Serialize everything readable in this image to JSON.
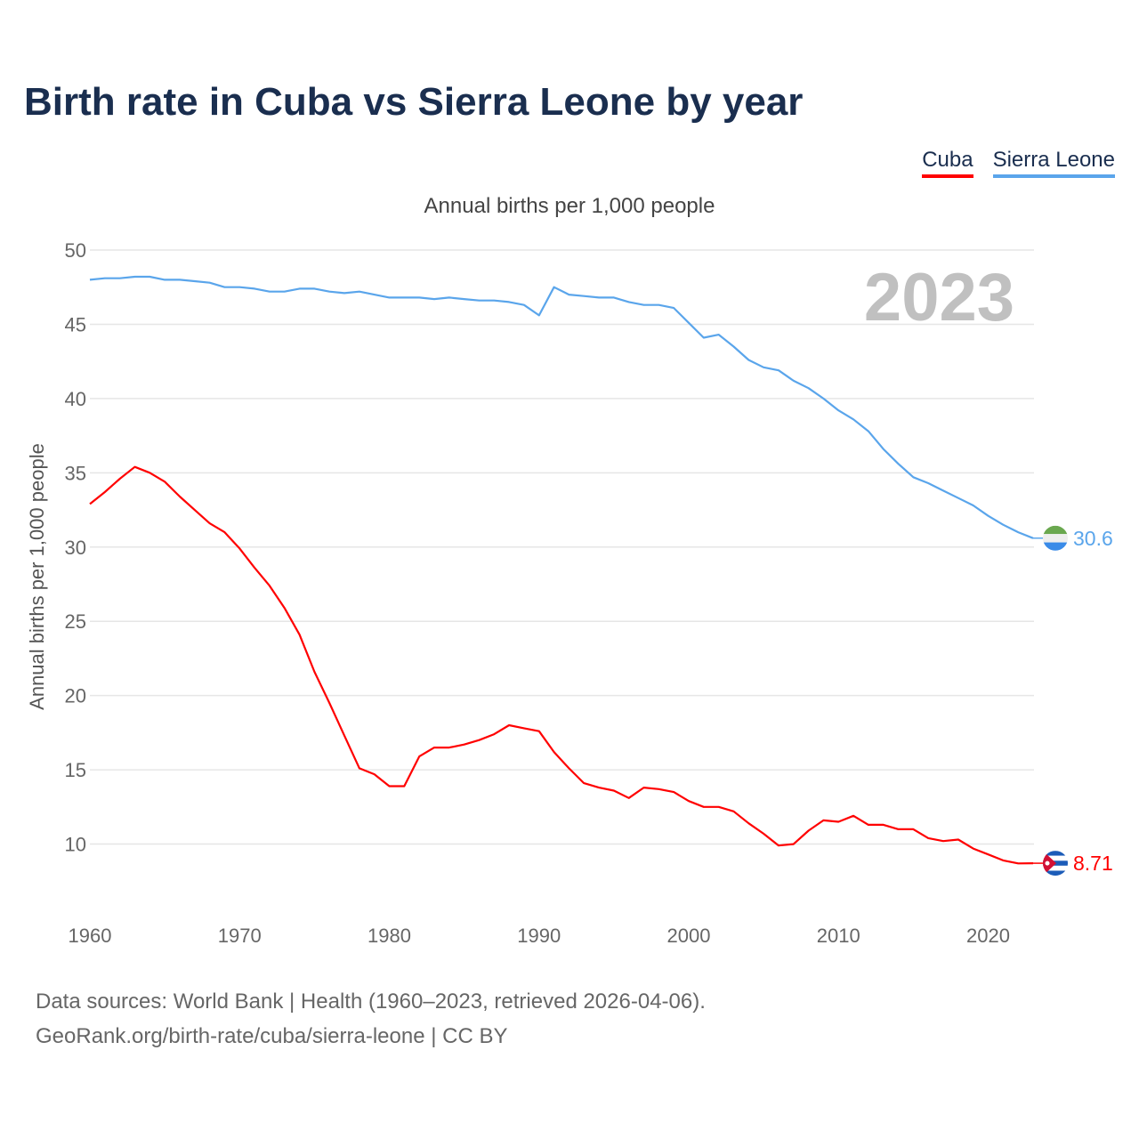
{
  "title": "Birth rate in Cuba vs Sierra Leone by year",
  "legend": [
    {
      "label": "Cuba",
      "color": "#ff0000"
    },
    {
      "label": "Sierra Leone",
      "color": "#5aa5eb"
    }
  ],
  "footer": {
    "line1": "Data sources: World Bank | Health (1960–2023, retrieved 2026-04-06).",
    "line2": "GeoRank.org/birth-rate/cuba/sierra-leone | CC BY"
  },
  "chart_data": {
    "type": "line",
    "title": "Birth rate in Cuba vs Sierra Leone by year",
    "subtitle": "Annual births per 1,000 people",
    "ylabel": "Annual births per 1,000 people",
    "xlabel": "",
    "year_label": "2023",
    "xlim": [
      1960,
      2023
    ],
    "ylim": [
      5,
      50
    ],
    "xticks": [
      "1960",
      "1970",
      "1980",
      "1990",
      "2000",
      "2010",
      "2020"
    ],
    "yticks": [
      "10",
      "15",
      "20",
      "25",
      "30",
      "35",
      "40",
      "45",
      "50"
    ],
    "grid": true,
    "legend_position": "top-right",
    "x_start": 1960,
    "series": [
      {
        "name": "Cuba",
        "color": "#ff0000",
        "end_label": "8.71",
        "flag": "cuba-flag",
        "values": [
          32.9,
          33.7,
          34.6,
          35.4,
          35.0,
          34.4,
          33.4,
          32.5,
          31.6,
          31.0,
          29.9,
          28.6,
          27.4,
          25.9,
          24.1,
          21.6,
          19.5,
          17.3,
          15.1,
          14.7,
          13.9,
          13.9,
          15.9,
          16.5,
          16.5,
          16.7,
          17.0,
          17.4,
          18.0,
          17.8,
          17.6,
          16.2,
          15.1,
          14.1,
          13.8,
          13.6,
          13.1,
          13.8,
          13.7,
          13.5,
          12.9,
          12.5,
          12.5,
          12.2,
          11.4,
          10.7,
          9.9,
          10.0,
          10.9,
          11.6,
          11.5,
          11.9,
          11.3,
          11.3,
          11.0,
          11.0,
          10.4,
          10.2,
          10.3,
          9.7,
          9.3,
          8.9,
          8.7,
          8.71
        ]
      },
      {
        "name": "Sierra Leone",
        "color": "#5aa5eb",
        "end_label": "30.6",
        "flag": "sierra-leone-flag",
        "values": [
          48.0,
          48.1,
          48.1,
          48.2,
          48.2,
          48.0,
          48.0,
          47.9,
          47.8,
          47.5,
          47.5,
          47.4,
          47.2,
          47.2,
          47.4,
          47.4,
          47.2,
          47.1,
          47.2,
          47.0,
          46.8,
          46.8,
          46.8,
          46.7,
          46.8,
          46.7,
          46.6,
          46.6,
          46.5,
          46.3,
          45.6,
          47.5,
          47.0,
          46.9,
          46.8,
          46.8,
          46.5,
          46.3,
          46.3,
          46.1,
          45.1,
          44.1,
          44.3,
          43.5,
          42.6,
          42.1,
          41.9,
          41.2,
          40.7,
          40.0,
          39.2,
          38.6,
          37.8,
          36.6,
          35.6,
          34.7,
          34.3,
          33.8,
          33.3,
          32.8,
          32.1,
          31.5,
          31.0,
          30.6
        ]
      }
    ]
  }
}
